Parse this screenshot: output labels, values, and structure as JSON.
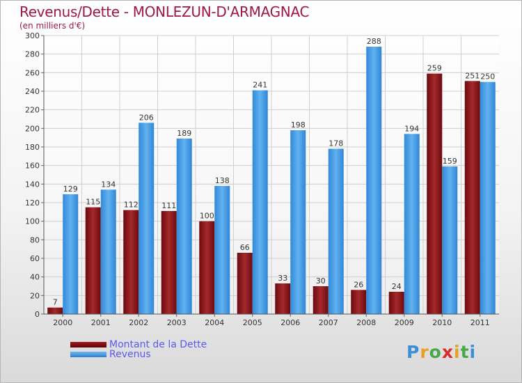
{
  "header": {
    "title": "Revenus/Dette - MONLEZUN-D'ARMAGNAC",
    "subtitle": "(en milliers d'€)"
  },
  "legend": [
    {
      "label": "Montant de la Dette",
      "color": "#7a0d10"
    },
    {
      "label": "Revenus",
      "color": "#3d9be6"
    }
  ],
  "logo": {
    "text": "Proxiti"
  },
  "chart_data": {
    "type": "bar",
    "title": "Revenus/Dette - MONLEZUN-D'ARMAGNAC",
    "subtitle": "(en milliers d'€)",
    "categories": [
      "2000",
      "2001",
      "2002",
      "2003",
      "2004",
      "2005",
      "2006",
      "2007",
      "2008",
      "2009",
      "2010",
      "2011"
    ],
    "series": [
      {
        "name": "Montant de la Dette",
        "color": "#7a0d10",
        "values": [
          7,
          115,
          112,
          111,
          100,
          66,
          33,
          30,
          26,
          24,
          259,
          251
        ]
      },
      {
        "name": "Revenus",
        "color": "#3d9be6",
        "values": [
          129,
          134,
          206,
          189,
          138,
          241,
          198,
          178,
          288,
          194,
          159,
          250
        ]
      }
    ],
    "ylim": [
      0,
      300
    ],
    "yticks": [
      0,
      20,
      40,
      60,
      80,
      100,
      120,
      140,
      160,
      180,
      200,
      220,
      240,
      260,
      280,
      300
    ],
    "grid": true,
    "legend_position": "bottom-left"
  }
}
